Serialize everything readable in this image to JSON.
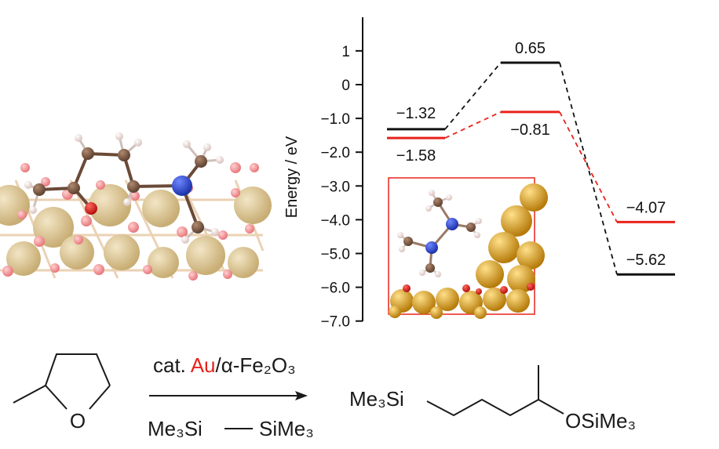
{
  "chart_data": {
    "type": "line",
    "title": "",
    "xlabel": "",
    "ylabel": "Energy / eV",
    "ylim": [
      -7.0,
      1.8
    ],
    "yticks": [
      "1",
      "0",
      "−1.0",
      "−2.0",
      "−3.0",
      "−4.0",
      "−5.0",
      "−6.0",
      "−7.0"
    ],
    "ytick_values": [
      1,
      0,
      -1,
      -2,
      -3,
      -4,
      -5,
      -6,
      -7
    ],
    "stages": [
      0,
      1,
      2
    ],
    "grid": false,
    "series": [
      {
        "color": "#111111",
        "values": [
          -1.32,
          0.65,
          -5.62
        ],
        "labels": [
          "−1.32",
          "0.65",
          "−5.62"
        ]
      },
      {
        "color": "#e8231c",
        "values": [
          -1.58,
          -0.81,
          -4.07
        ],
        "labels": [
          "−1.58",
          "−0.81",
          "−4.07"
        ]
      }
    ]
  },
  "scheme": {
    "catalyst_prefix": "cat. ",
    "catalyst_metal": "Au",
    "catalyst_rest": "/α-Fe₂O₃",
    "reagent_left": "Me₃Si",
    "reagent_right": "SiMe₃",
    "substrate_o": "O",
    "product_left": "Me₃Si",
    "product_right": "OSiMe₃"
  },
  "colors": {
    "red": "#e8231c",
    "black": "#111111",
    "gold": "#c9961a",
    "oxygen": "#e02020",
    "nitrogen": "#2747d4",
    "carbon": "#7a5a44",
    "fe_pale": "#d9c49a",
    "o_pale": "#f08c8c"
  }
}
